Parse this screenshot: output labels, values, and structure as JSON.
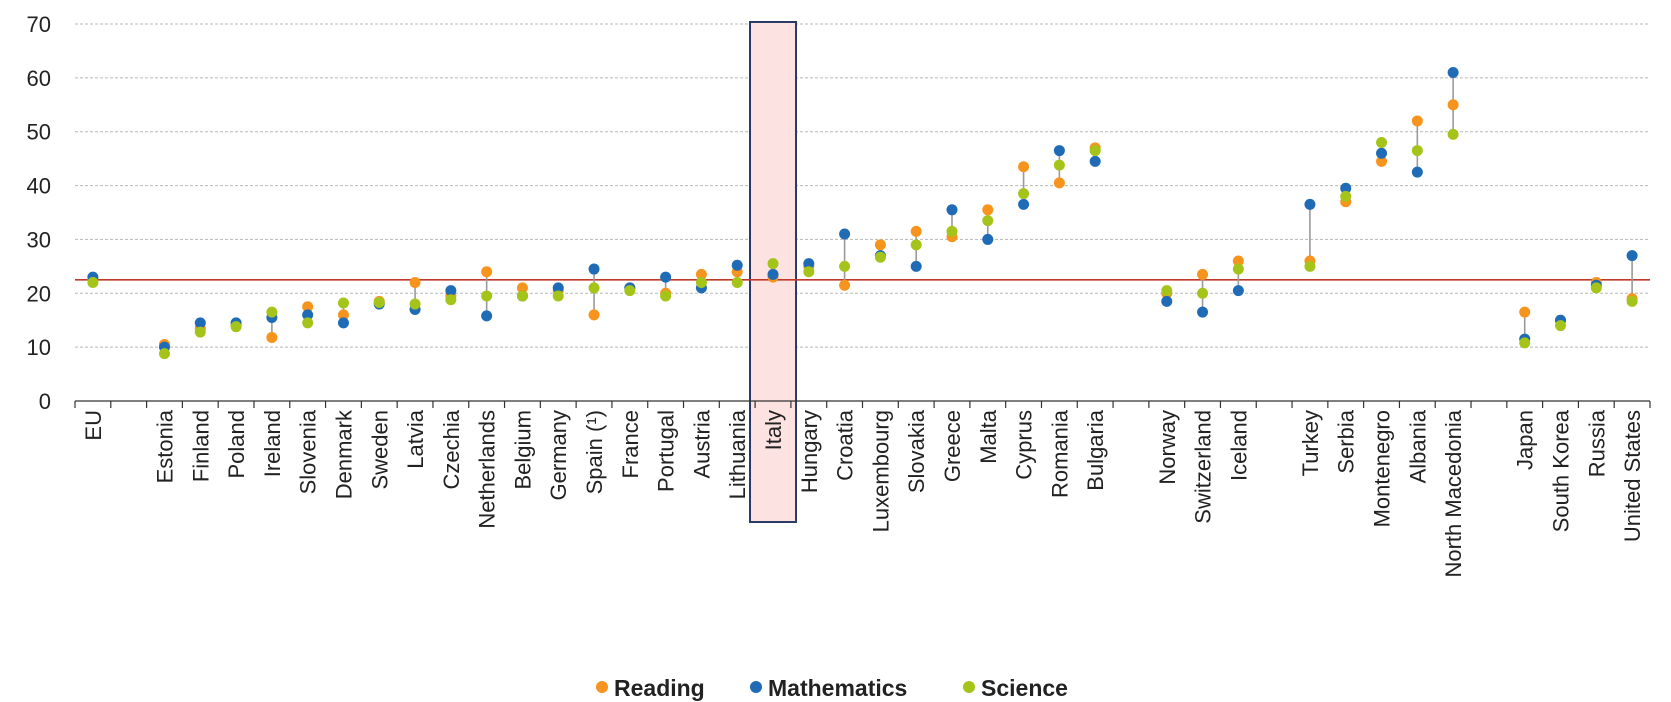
{
  "chart_data": {
    "type": "dot-range",
    "title": "",
    "xlabel": "",
    "ylabel": "",
    "ylim": [
      0,
      70
    ],
    "yticks": [
      0,
      10,
      20,
      30,
      40,
      50,
      60,
      70
    ],
    "grid": true,
    "legend_position": "bottom-center",
    "reference_line": {
      "value": 22.5,
      "color": "#c0392b"
    },
    "highlighted_category": "Italy",
    "highlight_colors": {
      "fill": "#fde2e2",
      "stroke": "#2b3a67"
    },
    "connector_color": "#9a9a9a",
    "categories": [
      "EU",
      "",
      "Estonia",
      "Finland",
      "Poland",
      "Ireland",
      "Slovenia",
      "Denmark",
      "Sweden",
      "Latvia",
      "Czechia",
      "Netherlands",
      "Belgium",
      "Germany",
      "Spain (¹)",
      "France",
      "Portugal",
      "Austria",
      "Lithuania",
      "Italy",
      "Hungary",
      "Croatia",
      "Luxembourg",
      "Slovakia",
      "Greece",
      "Malta",
      "Cyprus",
      "Romania",
      "Bulgaria",
      "",
      "Norway",
      "Switzerland",
      "Iceland",
      "",
      "Turkey",
      "Serbia",
      "Montenegro",
      "Albania",
      "North Macedonia",
      "",
      "Japan",
      "South Korea",
      "Russia",
      "United States"
    ],
    "series": [
      {
        "name": "Reading",
        "color": "#f7941d",
        "values": [
          22.5,
          null,
          10.5,
          13.5,
          14.0,
          11.8,
          17.5,
          16.0,
          18.5,
          22.0,
          19.5,
          24.0,
          21.0,
          20.5,
          16.0,
          21.0,
          20.0,
          23.5,
          24.0,
          23.0,
          25.0,
          21.5,
          29.0,
          31.5,
          30.5,
          35.5,
          43.5,
          40.5,
          47.0,
          null,
          20.0,
          23.5,
          26.0,
          null,
          26.0,
          37.0,
          44.5,
          52.0,
          55.0,
          null,
          16.5,
          15.0,
          22.0,
          19.0
        ]
      },
      {
        "name": "Mathematics",
        "color": "#1f6bb5",
        "values": [
          23.0,
          null,
          10.0,
          14.5,
          14.5,
          15.5,
          16.0,
          14.5,
          18.0,
          17.0,
          20.5,
          15.8,
          19.5,
          21.0,
          24.5,
          21.0,
          23.0,
          21.0,
          25.2,
          23.5,
          25.5,
          31.0,
          27.0,
          25.0,
          35.5,
          30.0,
          36.5,
          46.5,
          44.5,
          null,
          18.5,
          16.5,
          20.5,
          null,
          36.5,
          39.5,
          46.0,
          42.5,
          61.0,
          null,
          11.5,
          15.0,
          21.5,
          27.0
        ]
      },
      {
        "name": "Science",
        "color": "#a5c41a",
        "values": [
          22.0,
          null,
          8.8,
          12.8,
          13.8,
          16.5,
          14.5,
          18.2,
          18.3,
          18.0,
          18.8,
          19.5,
          19.5,
          19.5,
          21.0,
          20.5,
          19.5,
          22.0,
          22.0,
          25.5,
          24.0,
          25.0,
          26.7,
          29.0,
          31.5,
          33.5,
          38.5,
          43.8,
          46.5,
          null,
          20.5,
          20.0,
          24.5,
          null,
          25.0,
          38.0,
          48.0,
          46.5,
          49.5,
          null,
          10.8,
          14.0,
          21.0,
          18.5
        ]
      }
    ]
  },
  "legend": {
    "items": [
      {
        "label": "Reading",
        "color": "#f7941d"
      },
      {
        "label": "Mathematics",
        "color": "#1f6bb5"
      },
      {
        "label": "Science",
        "color": "#a5c41a"
      }
    ]
  }
}
